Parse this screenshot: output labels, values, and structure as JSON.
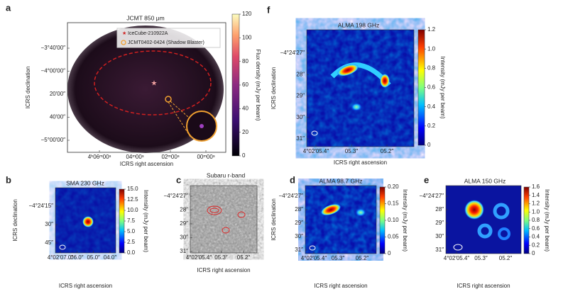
{
  "figure": {
    "panels": [
      {
        "label": "a",
        "title": "JCMT 850 μm",
        "yticks": [
          "−3°40′00″",
          "−4°00′00″",
          "20′00″",
          "40′00″",
          "−5°00′00″"
        ],
        "xticks": [
          "4ʰ06ᵐ00ˢ",
          "04ᵐ00ˢ",
          "02ᵐ00ˢ",
          "00ᵐ00ˢ"
        ],
        "xlabel": "ICRS right ascension",
        "ylabel": "ICRS declination",
        "colorbar": {
          "ticks": [
            "0",
            "20",
            "40",
            "60",
            "80",
            "100",
            "120"
          ],
          "label": "Flux density (mJy per beam)"
        },
        "legend": [
          "IceCube-210922A",
          "JCMT0402-0424 (Shadow Blaster)"
        ]
      },
      {
        "label": "f",
        "title": "ALMA 198 GHz",
        "yticks": [
          "−4°24′27″",
          "28″",
          "29″",
          "30″",
          "31″"
        ],
        "xticks": [
          "4°02′05.4″",
          "05.3″",
          "05.2″"
        ],
        "xlabel": "ICRS right ascension",
        "ylabel": "ICRS declination",
        "colorbar": {
          "ticks": [
            "0",
            "0.2",
            "0.4",
            "0.6",
            "0.8",
            "1.0",
            "1.2"
          ],
          "label": "Intensity (mJy per beam)"
        }
      },
      {
        "label": "b",
        "title": "SMA 230 GHz",
        "yticks": [
          "−4°24′15″",
          "30″",
          "45″"
        ],
        "xticks": [
          "4°02′07.0″",
          "06.0″",
          "05.0″",
          "04.0″"
        ],
        "xlabel": "ICRS right ascension",
        "ylabel": "ICRS declination",
        "colorbar": {
          "ticks": [
            "0.0",
            "2.5",
            "5.0",
            "7.5",
            "10.0",
            "12.5",
            "15.0"
          ],
          "label": "Intensity (mJy per beam)"
        }
      },
      {
        "label": "c",
        "title": "Subaru r-band",
        "yticks": [
          "−4°24′27″",
          "28″",
          "29″",
          "30″",
          "31″"
        ],
        "xticks": [
          "4°02′05.4″",
          "05.3″",
          "05.2″"
        ],
        "xlabel": "ICRS right ascension"
      },
      {
        "label": "d",
        "title": "ALMA 98.7 GHz",
        "yticks": [
          "−4°24′27″",
          "28″",
          "29″",
          "30″",
          "31″"
        ],
        "xticks": [
          "4°02′05.4″",
          "05.3″",
          "05.2″"
        ],
        "xlabel": "ICRS right ascension",
        "ylabel": "ICRS declination",
        "colorbar": {
          "ticks": [
            "0",
            "0.05",
            "0.10",
            "0.15",
            "0.20"
          ],
          "label": "Intensity (mJy per beam)"
        }
      },
      {
        "label": "e",
        "title": "ALMA 150 GHz",
        "yticks": [
          "−4°24′27″",
          "28″",
          "29″",
          "30″",
          "31″"
        ],
        "xticks": [
          "4°02′05.4″",
          "05.3″",
          "05.2″"
        ],
        "xlabel": "ICRS right ascension",
        "colorbar": {
          "ticks": [
            "0",
            "0.2",
            "0.4",
            "0.6",
            "0.8",
            "1.0",
            "1.2",
            "1.4",
            "1.6"
          ],
          "label": "Intensity (mJy per beam)"
        }
      }
    ]
  }
}
